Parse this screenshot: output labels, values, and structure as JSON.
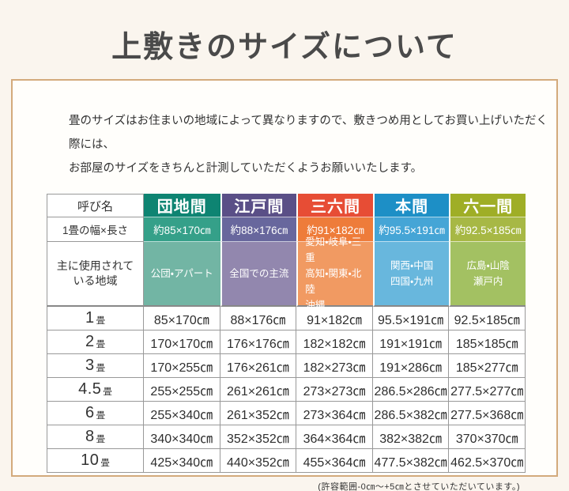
{
  "page": {
    "title": "上敷きのサイズについて",
    "intro_lines": [
      "畳のサイズはお住まいの地域によって異なりますので、敷きつめ用としてお買い上げいただく際には、",
      "お部屋のサイズをきちんと計測していただくようお願いいたします。"
    ],
    "footnote": "(許容範囲-0㎝～+5㎝とさせていただいています。)"
  },
  "table": {
    "corner_label": "呼び名",
    "width_length_label": "1畳の幅×長さ",
    "regions_label_lines": [
      "主に使用されて",
      "いる地域"
    ],
    "size_unit": "畳",
    "columns": [
      {
        "name": "団地間",
        "width_length": "約85×170㎝",
        "regions": [
          "公団・アパート"
        ],
        "colors": {
          "dark": "#0e8472",
          "mid": "#35a089",
          "light": "#72b5a4"
        }
      },
      {
        "name": "江戸間",
        "width_length": "約88×176㎝",
        "regions": [
          "全国での主流"
        ],
        "colors": {
          "dark": "#5a4f87",
          "mid": "#68679d",
          "light": "#9287ae"
        }
      },
      {
        "name": "三六間",
        "width_length": "約91×182㎝",
        "regions": [
          "愛知・岐阜・三重",
          "高知・関東・北陸",
          "沖縄"
        ],
        "colors": {
          "dark": "#e74d35",
          "mid": "#ee7c3a",
          "light": "#f19a62"
        }
      },
      {
        "name": "本間",
        "width_length": "約95.5×191㎝",
        "regions": [
          "関西・中国",
          "四国・九州"
        ],
        "colors": {
          "dark": "#1d8fc6",
          "mid": "#45a5d6",
          "light": "#68b7dd"
        }
      },
      {
        "name": "六一間",
        "width_length": "約92.5×185㎝",
        "regions": [
          "広島・山陰",
          "瀬戸内"
        ],
        "colors": {
          "dark": "#9fae26",
          "mid": "#a7b845",
          "light": "#a3c162"
        }
      }
    ],
    "size_rows": [
      {
        "label": "1",
        "values": [
          "85×170㎝",
          "88×176㎝",
          "91×182㎝",
          "95.5×191㎝",
          "92.5×185㎝"
        ]
      },
      {
        "label": "2",
        "values": [
          "170×170㎝",
          "176×176㎝",
          "182×182㎝",
          "191×191㎝",
          "185×185㎝"
        ]
      },
      {
        "label": "3",
        "values": [
          "170×255㎝",
          "176×261㎝",
          "182×273㎝",
          "191×286㎝",
          "185×277㎝"
        ]
      },
      {
        "label": "4.5",
        "values": [
          "255×255㎝",
          "261×261㎝",
          "273×273㎝",
          "286.5×286㎝",
          "277.5×277㎝"
        ]
      },
      {
        "label": "6",
        "values": [
          "255×340㎝",
          "261×352㎝",
          "273×364㎝",
          "286.5×382㎝",
          "277.5×368㎝"
        ]
      },
      {
        "label": "8",
        "values": [
          "340×340㎝",
          "352×352㎝",
          "364×364㎝",
          "382×382㎝",
          "370×370㎝"
        ]
      },
      {
        "label": "10",
        "values": [
          "425×340㎝",
          "440×352㎝",
          "455×364㎝",
          "477.5×382㎝",
          "462.5×370㎝"
        ]
      }
    ]
  }
}
